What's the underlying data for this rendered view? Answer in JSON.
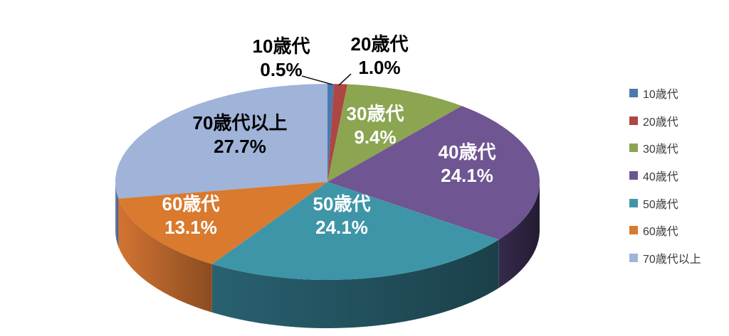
{
  "page": {
    "background": "#ffffff"
  },
  "chart_data": {
    "type": "pie",
    "projection": "3d",
    "title": "",
    "legend_position": "right",
    "direction": "clockwise",
    "start_angle_deg": 0,
    "categories": [
      "10歳代",
      "20歳代",
      "30歳代",
      "40歳代",
      "50歳代",
      "60歳代",
      "70歳代以上"
    ],
    "values": [
      0.5,
      1.0,
      9.4,
      24.1,
      24.1,
      13.1,
      27.7
    ],
    "percent_labels": [
      "0.5%",
      "1.0%",
      "9.4%",
      "24.1%",
      "24.1%",
      "13.1%",
      "27.7%"
    ],
    "colors": [
      "#4A79AE",
      "#AE4643",
      "#8BA551",
      "#6F5591",
      "#3F95A8",
      "#D97A2E",
      "#A0B3D9"
    ],
    "side_colors": [
      "#2B4868",
      "#6B2B29",
      "#53632F",
      "#2E2440",
      "#23525F",
      "#B2622A",
      "#5F7098"
    ],
    "label_text_colors": [
      "#000000",
      "#000000",
      "#ffffff",
      "#ffffff",
      "#ffffff",
      "#ffffff",
      "#000000"
    ],
    "label_placement": [
      "outside",
      "outside",
      "inside",
      "inside",
      "inside",
      "inside",
      "inside"
    ],
    "leader_line_color": "#1a1a1a"
  }
}
